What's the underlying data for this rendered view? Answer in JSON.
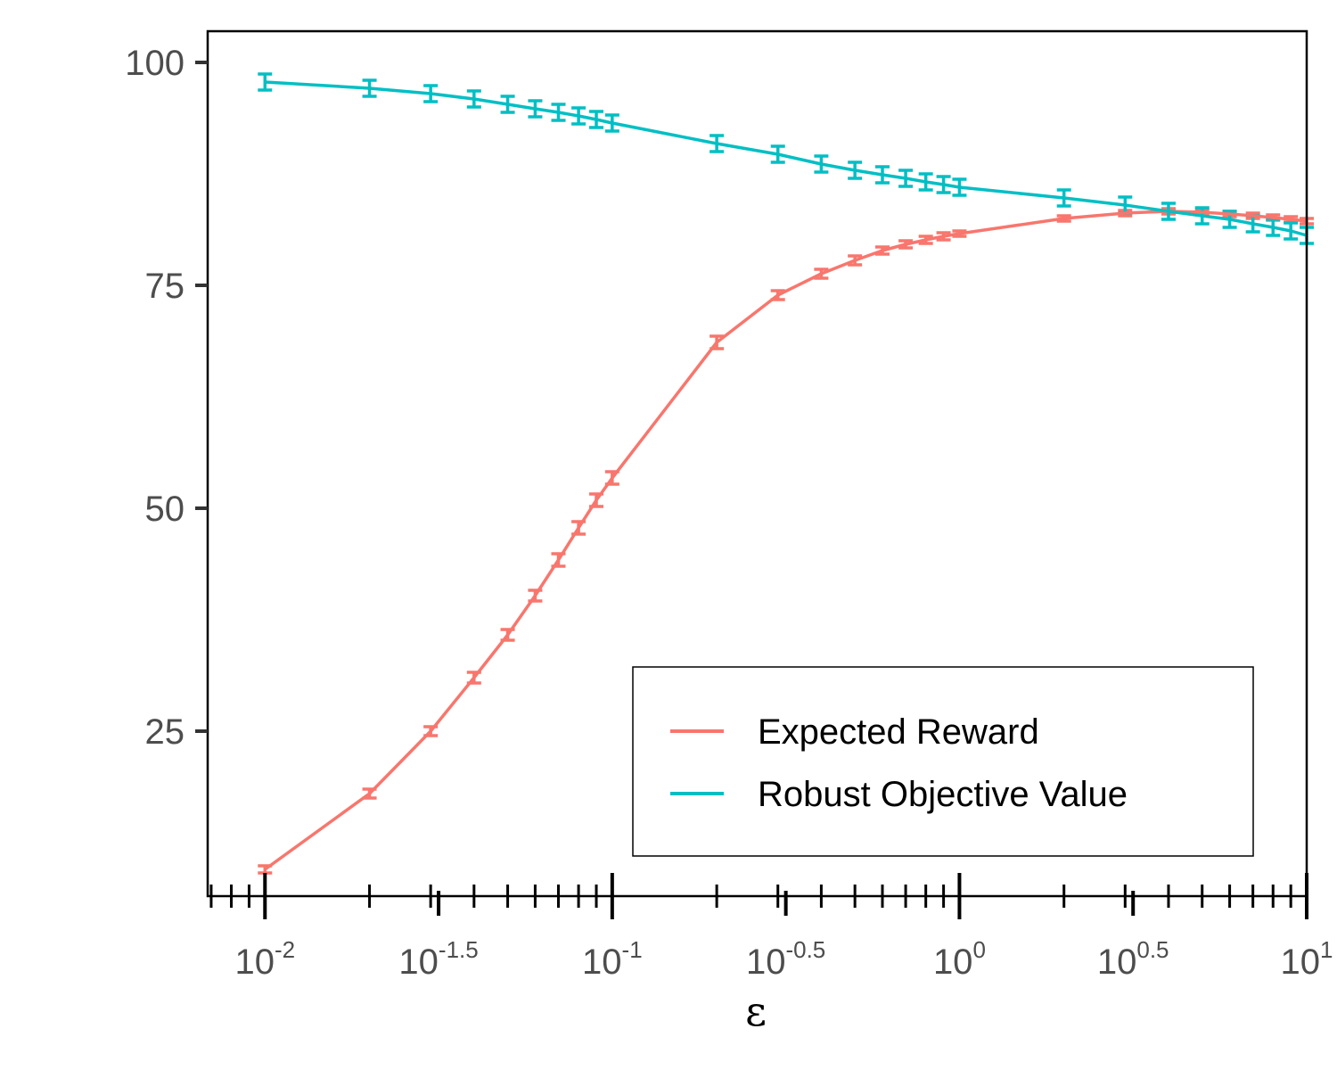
{
  "chart_data": {
    "type": "line",
    "title": "",
    "xlabel": "ε",
    "ylabel": "",
    "xscale": "log10",
    "xlim_log10": [
      -2.165,
      1.0
    ],
    "ylim": [
      6.5,
      103.5
    ],
    "grid": false,
    "legend_position": "bottom-right",
    "y_ticks": [
      {
        "value": 25,
        "label": "25"
      },
      {
        "value": 50,
        "label": "50"
      },
      {
        "value": 75,
        "label": "75"
      },
      {
        "value": 100,
        "label": "100"
      }
    ],
    "x_ticks": [
      {
        "log": -2,
        "base": "10",
        "exp": "-2"
      },
      {
        "log": -1.5,
        "base": "10",
        "exp": "-1.5"
      },
      {
        "log": -1,
        "base": "10",
        "exp": "-1"
      },
      {
        "log": -0.5,
        "base": "10",
        "exp": "-0.5"
      },
      {
        "log": 0,
        "base": "10",
        "exp": "0"
      },
      {
        "log": 0.5,
        "base": "10",
        "exp": "0.5"
      },
      {
        "log": 1,
        "base": "10",
        "exp": "1"
      }
    ],
    "series": [
      {
        "name": "Expected Reward",
        "color": "#F8766D",
        "x": [
          0.01,
          0.02,
          0.03,
          0.04,
          0.05,
          0.06,
          0.07,
          0.08,
          0.09,
          0.1,
          0.2,
          0.3,
          0.4,
          0.5,
          0.6,
          0.7,
          0.8,
          0.9,
          1,
          2,
          3,
          4,
          5,
          6,
          7,
          8,
          9,
          10
        ],
        "y": [
          9.5,
          18,
          25,
          31,
          35.8,
          40.2,
          44.2,
          47.8,
          50.9,
          53.4,
          68.6,
          73.9,
          76.3,
          77.8,
          78.9,
          79.6,
          80.1,
          80.5,
          80.8,
          82.5,
          83.1,
          83.3,
          83.2,
          83.0,
          82.8,
          82.6,
          82.4,
          82.2
        ],
        "err": [
          0.4,
          0.5,
          0.5,
          0.6,
          0.6,
          0.6,
          0.7,
          0.7,
          0.7,
          0.7,
          0.7,
          0.5,
          0.5,
          0.5,
          0.4,
          0.4,
          0.4,
          0.4,
          0.3,
          0.3,
          0.3,
          0.3,
          0.3,
          0.3,
          0.3,
          0.3,
          0.3,
          0.3
        ]
      },
      {
        "name": "Robust Objective Value",
        "color": "#00BFC4",
        "x": [
          0.01,
          0.02,
          0.03,
          0.04,
          0.05,
          0.06,
          0.07,
          0.08,
          0.09,
          0.1,
          0.2,
          0.3,
          0.4,
          0.5,
          0.6,
          0.7,
          0.8,
          0.9,
          1,
          2,
          3,
          4,
          5,
          6,
          7,
          8,
          9,
          10
        ],
        "y": [
          97.8,
          97.1,
          96.5,
          95.9,
          95.3,
          94.8,
          94.4,
          94.0,
          93.6,
          93.2,
          90.9,
          89.7,
          88.6,
          87.9,
          87.4,
          87.0,
          86.6,
          86.3,
          86.0,
          84.8,
          84.0,
          83.3,
          82.8,
          82.4,
          81.9,
          81.5,
          81.1,
          80.6
        ],
        "err": [
          0.9,
          0.9,
          0.9,
          0.9,
          0.9,
          0.9,
          0.9,
          0.9,
          0.9,
          0.9,
          0.9,
          0.9,
          0.9,
          0.9,
          0.9,
          0.9,
          0.9,
          0.9,
          0.9,
          0.9,
          0.9,
          0.9,
          0.9,
          0.9,
          0.9,
          0.9,
          0.9,
          0.9
        ]
      }
    ]
  }
}
